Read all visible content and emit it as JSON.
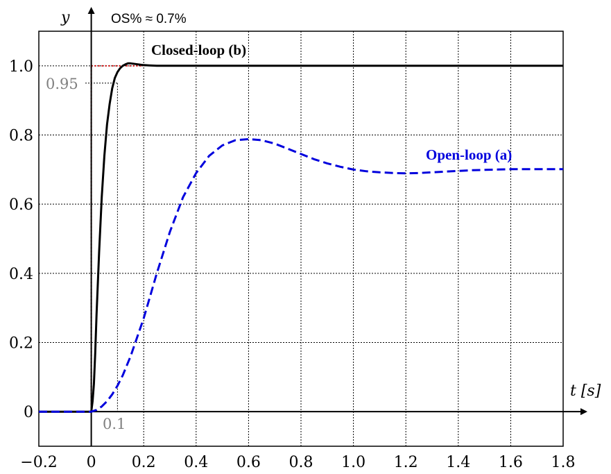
{
  "chart_data": {
    "type": "line",
    "xlabel": "t [s]",
    "ylabel": "y",
    "xlim": [
      -0.2,
      1.8
    ],
    "ylim": [
      -0.1,
      1.1
    ],
    "x_ticks": [
      -0.2,
      0,
      0.2,
      0.4,
      0.6,
      0.8,
      1.0,
      1.2,
      1.4,
      1.6,
      1.8
    ],
    "x_tick_labels": [
      "−0.2",
      "0",
      "0.2",
      "0.4",
      "0.6",
      "0.8",
      "1.0",
      "1.2",
      "1.4",
      "1.6",
      "1.8"
    ],
    "y_ticks": [
      0,
      0.2,
      0.4,
      0.6,
      0.8,
      1.0
    ],
    "y_tick_labels": [
      "0",
      "0.2",
      "0.4",
      "0.6",
      "0.8",
      "1.0"
    ],
    "grid": true,
    "series": [
      {
        "name": "Closed-loop (b)",
        "color": "#000000",
        "style": "solid",
        "x": [
          -0.2,
          0.0,
          0.005,
          0.01,
          0.015,
          0.02,
          0.03,
          0.04,
          0.05,
          0.06,
          0.07,
          0.08,
          0.09,
          0.1,
          0.11,
          0.12,
          0.13,
          0.14,
          0.15,
          0.16,
          0.18,
          0.2,
          0.22,
          0.25,
          0.3,
          0.4,
          0.6,
          1.0,
          1.4,
          1.8
        ],
        "values": [
          0,
          0,
          0.03,
          0.08,
          0.17,
          0.28,
          0.46,
          0.62,
          0.74,
          0.83,
          0.89,
          0.935,
          0.965,
          0.982,
          0.993,
          1.0,
          1.004,
          1.007,
          1.007,
          1.006,
          1.004,
          1.002,
          1.001,
          1.0,
          1.0,
          1.0,
          1.0,
          1.0,
          1.0,
          1.0
        ]
      },
      {
        "name": "Open-loop (a)",
        "color": "#0000dd",
        "style": "dashed",
        "x": [
          -0.2,
          0.0,
          0.02,
          0.04,
          0.06,
          0.08,
          0.1,
          0.12,
          0.15,
          0.2,
          0.25,
          0.3,
          0.35,
          0.4,
          0.45,
          0.5,
          0.55,
          0.6,
          0.65,
          0.7,
          0.75,
          0.8,
          0.85,
          0.9,
          0.95,
          1.0,
          1.05,
          1.1,
          1.15,
          1.2,
          1.25,
          1.3,
          1.35,
          1.4,
          1.45,
          1.5,
          1.55,
          1.6,
          1.7,
          1.8
        ],
        "values": [
          0,
          0,
          0.005,
          0.015,
          0.03,
          0.05,
          0.075,
          0.105,
          0.16,
          0.27,
          0.4,
          0.52,
          0.62,
          0.69,
          0.74,
          0.77,
          0.785,
          0.788,
          0.785,
          0.775,
          0.76,
          0.745,
          0.73,
          0.718,
          0.708,
          0.7,
          0.695,
          0.692,
          0.69,
          0.689,
          0.69,
          0.692,
          0.694,
          0.696,
          0.698,
          0.699,
          0.7,
          0.701,
          0.701,
          0.701
        ]
      }
    ],
    "annotations": {
      "overshoot": "OS% ≈ 0.7%",
      "settle_level_label": "0.95",
      "settle_level_value": 0.95,
      "rise_time_label": "0.1",
      "rise_time_value": 0.1
    }
  }
}
